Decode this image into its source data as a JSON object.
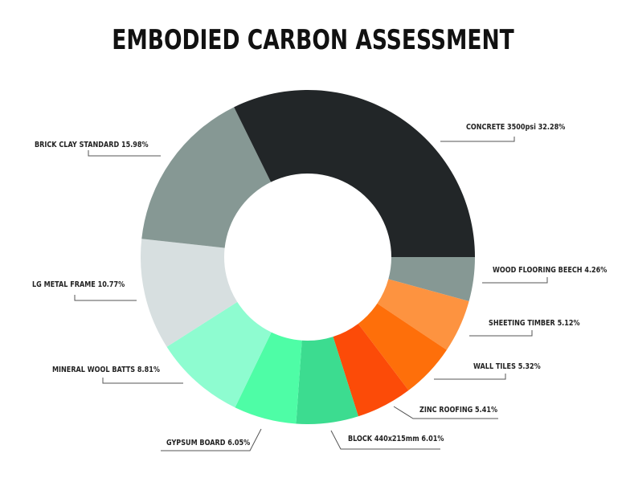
{
  "chart_data": {
    "type": "pie",
    "subtype": "donut",
    "title": "EMBODIED CARBON ASSESSMENT",
    "unit": "%",
    "slices": [
      {
        "label": "CONCRETE 3500psi",
        "value": 32.28,
        "color": "#222628"
      },
      {
        "label": "WOOD FLOORING BEECH",
        "value": 4.26,
        "color": "#869894"
      },
      {
        "label": "SHEETING TIMBER",
        "value": 5.12,
        "color": "#fd9340"
      },
      {
        "label": "WALL TILES",
        "value": 5.32,
        "color": "#fe6f0a"
      },
      {
        "label": "ZINC ROOFING",
        "value": 5.41,
        "color": "#fc4b08"
      },
      {
        "label": "BLOCK 440x215mm",
        "value": 6.01,
        "color": "#3cdc90"
      },
      {
        "label": "GYPSUM BOARD",
        "value": 6.05,
        "color": "#4efda6"
      },
      {
        "label": "MINERAL WOOL BATTS",
        "value": 8.81,
        "color": "#8efcd0"
      },
      {
        "label": "LG METAL FRAME",
        "value": 10.77,
        "color": "#d7dfe0"
      },
      {
        "label": "BRICK CLAY STANDARD",
        "value": 15.98,
        "color": "#869894"
      }
    ],
    "legend_position": "callout labels"
  },
  "labels": {
    "concrete": "CONCRETE 3500psi 32.28%",
    "wood": "WOOD FLOORING BEECH 4.26%",
    "sheeting": "SHEETING TIMBER 5.12%",
    "walltiles": "WALL TILES 5.32%",
    "zinc": "ZINC ROOFING 5.41%",
    "block": "BLOCK 440x215mm 6.01%",
    "gypsum": "GYPSUM BOARD 6.05%",
    "mineral": "MINERAL WOOL BATTS 8.81%",
    "lgmetal": "LG METAL FRAME 10.77%",
    "brick": "BRICK CLAY STANDARD 15.98%"
  }
}
